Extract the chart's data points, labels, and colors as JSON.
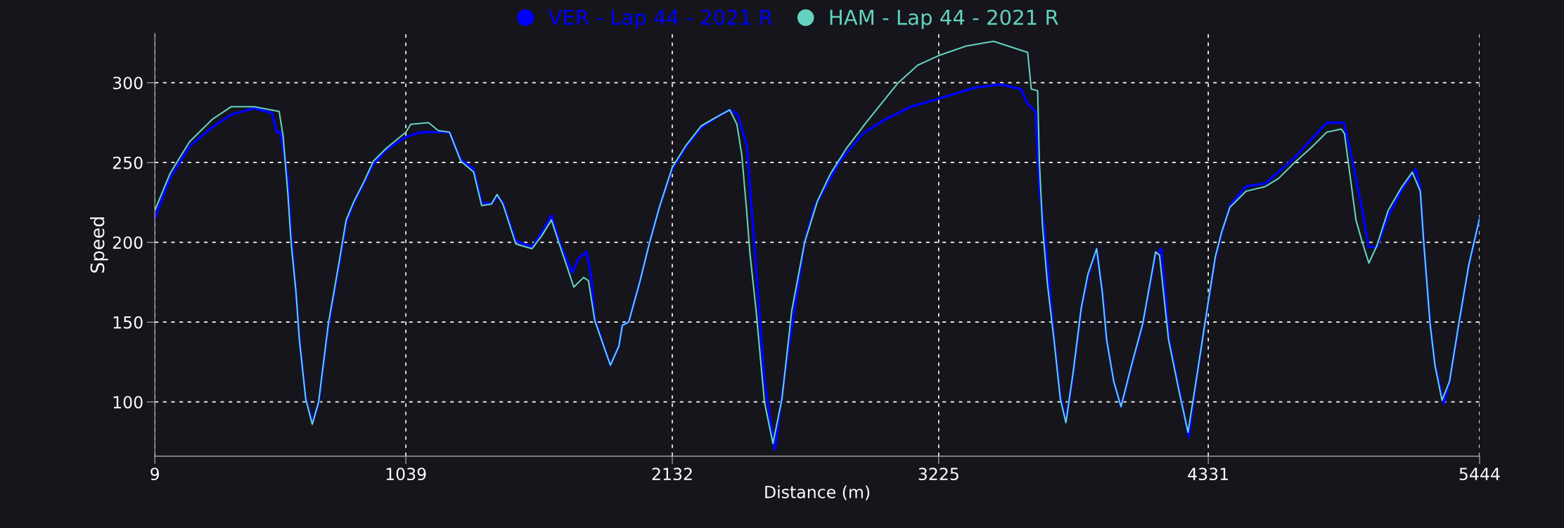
{
  "chart_data": {
    "type": "line",
    "xlabel": "Distance (m)",
    "ylabel": "Speed",
    "xlim": [
      9,
      5444
    ],
    "ylim": [
      66,
      331
    ],
    "xticks": [
      9,
      1039,
      2132,
      3225,
      4331,
      5444
    ],
    "yticks": [
      100,
      150,
      200,
      250,
      300
    ],
    "grid": true,
    "legend": "top",
    "marker": "none",
    "line_style": "solid",
    "series": [
      {
        "name": "VER - Lap 44 - 2021 R",
        "color": "#0000ff",
        "x": [
          9,
          71,
          151,
          244,
          323,
          416,
          490,
          509,
          525,
          555,
          568,
          588,
          602,
          628,
          655,
          681,
          721,
          761,
          794,
          827,
          867,
          906,
          959,
          1039,
          1100,
          1160,
          1218,
          1264,
          1317,
          1350,
          1390,
          1413,
          1437,
          1490,
          1556,
          1596,
          1636,
          1675,
          1722,
          1748,
          1781,
          1800,
          1814,
          1878,
          1913,
          1927,
          1953,
          2000,
          2039,
          2079,
          2132,
          2185,
          2251,
          2331,
          2368,
          2400,
          2438,
          2471,
          2511,
          2553,
          2595,
          2635,
          2675,
          2715,
          2821,
          2913,
          3006,
          3112,
          3225,
          3377,
          3477,
          3563,
          3589,
          3622,
          3640,
          3658,
          3698,
          3724,
          3747,
          3777,
          3810,
          3837,
          3873,
          3900,
          3914,
          3943,
          3973,
          4016,
          4062,
          4115,
          4139,
          4170,
          4208,
          4251,
          4287,
          4327,
          4360,
          4387,
          4420,
          4486,
          4566,
          4685,
          4817,
          4888,
          4923,
          4963,
          4990,
          5023,
          5069,
          5122,
          5182,
          5201,
          5215,
          5241,
          5261,
          5297,
          5321,
          5361,
          5400,
          5444
        ],
        "values": [
          215,
          240,
          260,
          272,
          280,
          284,
          281,
          269,
          269,
          240,
          205,
          170,
          140,
          103,
          87,
          99,
          147,
          182,
          212,
          225,
          237,
          249,
          258,
          266,
          269,
          269,
          269,
          252,
          246,
          225,
          224,
          229,
          225,
          201,
          197,
          206,
          217,
          198,
          181,
          190,
          194,
          178,
          152,
          123,
          135,
          148,
          150,
          176,
          200,
          222,
          246,
          259,
          272,
          280,
          283,
          280,
          261,
          194,
          113,
          70,
          119,
          159,
          200,
          222,
          251,
          268,
          277,
          285,
          290,
          297,
          299,
          296,
          287,
          282,
          230,
          210,
          141,
          104,
          88,
          117,
          158,
          178,
          196,
          165,
          139,
          113,
          97,
          122,
          148,
          192,
          196,
          140,
          111,
          78,
          119,
          158,
          190,
          206,
          223,
          235,
          237,
          253,
          275,
          275,
          251,
          220,
          197,
          197,
          216,
          232,
          246,
          234,
          200,
          150,
          124,
          99,
          113,
          150,
          185,
          215
        ]
      },
      {
        "name": "HAM - Lap 44 - 2021 R",
        "color": "#64d2be",
        "x": [
          9,
          71,
          151,
          244,
          323,
          416,
          519,
          535,
          555,
          568,
          588,
          602,
          628,
          655,
          681,
          721,
          761,
          794,
          827,
          867,
          906,
          959,
          1039,
          1059,
          1132,
          1172,
          1218,
          1264,
          1317,
          1350,
          1390,
          1413,
          1437,
          1490,
          1556,
          1596,
          1636,
          1675,
          1728,
          1768,
          1788,
          1814,
          1878,
          1913,
          1927,
          1953,
          2000,
          2039,
          2079,
          2132,
          2185,
          2251,
          2331,
          2368,
          2397,
          2417,
          2437,
          2450,
          2476,
          2510,
          2545,
          2582,
          2622,
          2675,
          2728,
          2781,
          2847,
          2927,
          3006,
          3059,
          3139,
          3225,
          3338,
          3450,
          3510,
          3590,
          3605,
          3631,
          3638,
          3651,
          3671,
          3698,
          3724,
          3747,
          3777,
          3810,
          3837,
          3873,
          3896,
          3914,
          3943,
          3973,
          4016,
          4062,
          4115,
          4131,
          4168,
          4208,
          4248,
          4287,
          4327,
          4360,
          4387,
          4420,
          4486,
          4566,
          4619,
          4685,
          4751,
          4817,
          4877,
          4890,
          4910,
          4937,
          4963,
          4990,
          5023,
          5069,
          5122,
          5168,
          5201,
          5215,
          5241,
          5261,
          5290,
          5321,
          5361,
          5400,
          5444
        ],
        "values": [
          220,
          243,
          263,
          277,
          285,
          285,
          282,
          267,
          230,
          200,
          169,
          139,
          102,
          86,
          100,
          149,
          184,
          214,
          226,
          238,
          251,
          259,
          269,
          274,
          275,
          270,
          269,
          251,
          244,
          223,
          224,
          230,
          224,
          199,
          196,
          204,
          214,
          196,
          172,
          178,
          176,
          151,
          123,
          135,
          148,
          150,
          176,
          200,
          222,
          247,
          260,
          273,
          280,
          283,
          274,
          255,
          220,
          194,
          157,
          100,
          74,
          102,
          157,
          200,
          226,
          243,
          259,
          275,
          290,
          300,
          311,
          317,
          323,
          326,
          323,
          319,
          296,
          295,
          251,
          210,
          174,
          139,
          102,
          87,
          119,
          159,
          180,
          196,
          169,
          139,
          113,
          97,
          123,
          149,
          194,
          192,
          139,
          109,
          81,
          119,
          159,
          191,
          207,
          222,
          232,
          235,
          240,
          250,
          259,
          269,
          271,
          268,
          245,
          214,
          200,
          187,
          198,
          220,
          234,
          244,
          232,
          200,
          149,
          123,
          101,
          113,
          151,
          186,
          215
        ]
      }
    ]
  }
}
